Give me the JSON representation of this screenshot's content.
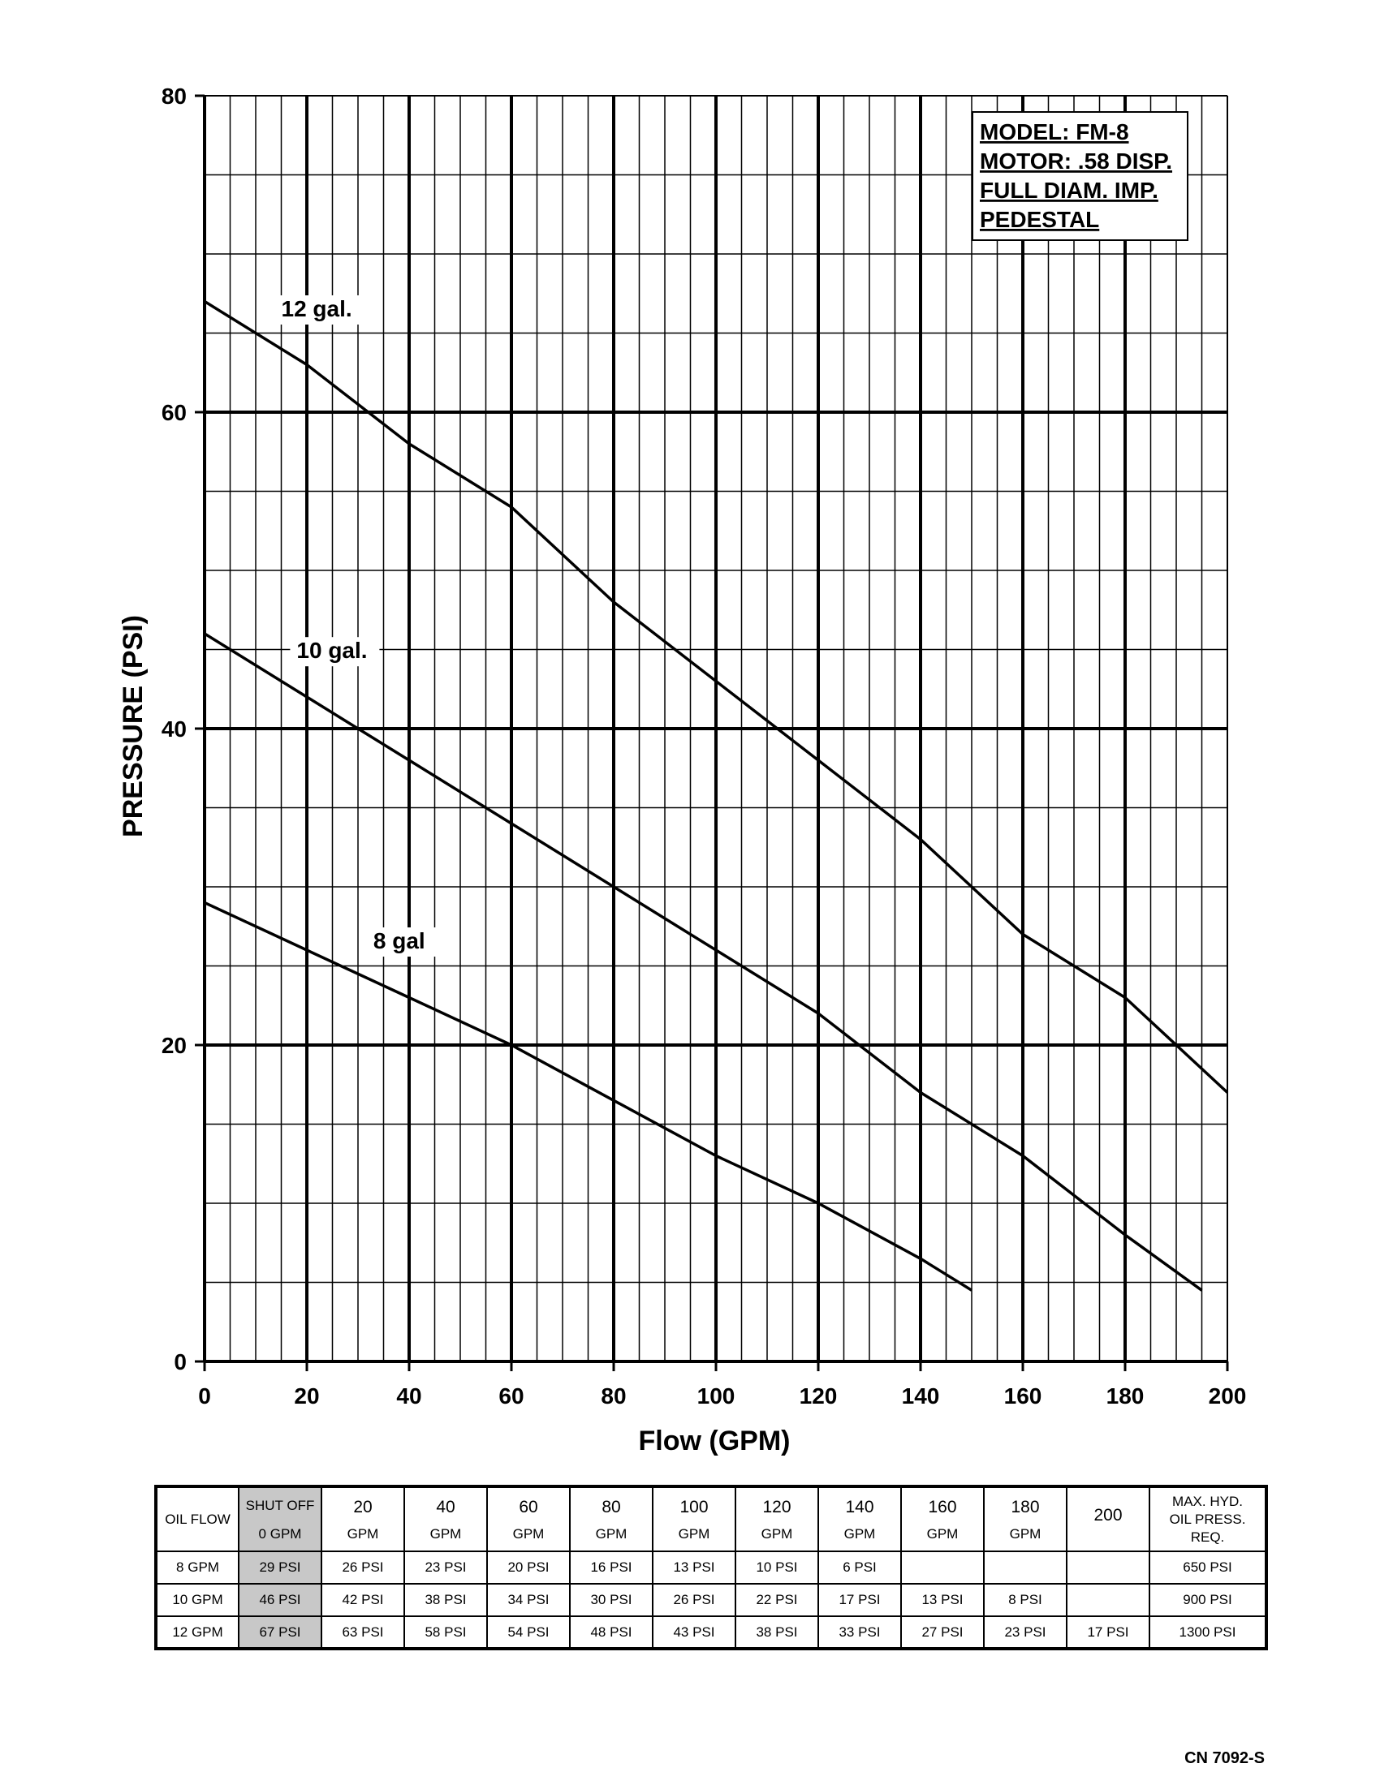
{
  "chart_data": {
    "type": "line",
    "xlabel": "Flow (GPM)",
    "ylabel": "PRESSURE (PSI)",
    "xlim": [
      0,
      200
    ],
    "ylim": [
      0,
      80
    ],
    "x_ticks": [
      "0",
      "20",
      "40",
      "60",
      "80",
      "100",
      "120",
      "140",
      "160",
      "180",
      "200"
    ],
    "y_ticks": [
      "0",
      "20",
      "40",
      "60",
      "80"
    ],
    "grid": true,
    "legend_box": [
      "MODEL: FM-8",
      "MOTOR: .58 DISP.",
      "FULL DIAM. IMP.",
      "PEDESTAL"
    ],
    "legend_placement": "top-right",
    "series": [
      {
        "name": "12 gal.",
        "x": [
          0,
          20,
          40,
          60,
          80,
          100,
          120,
          140,
          160,
          180,
          200
        ],
        "y": [
          67,
          63,
          58,
          54,
          48,
          43,
          38,
          33,
          27,
          23,
          17
        ]
      },
      {
        "name": "10 gal.",
        "x": [
          0,
          20,
          40,
          60,
          80,
          100,
          120,
          140,
          160,
          180,
          195
        ],
        "y": [
          46,
          42,
          38,
          34,
          30,
          26,
          22,
          17,
          13,
          8,
          4.5
        ]
      },
      {
        "name": "8 gal",
        "x": [
          0,
          20,
          40,
          60,
          80,
          100,
          120,
          140,
          150
        ],
        "y": [
          29,
          26,
          23,
          20,
          16.5,
          13,
          10,
          6.5,
          4.5
        ]
      }
    ]
  },
  "table": {
    "corner": "OIL FLOW",
    "header": [
      {
        "top": "SHUT OFF",
        "bottom": "0 GPM"
      },
      {
        "top": "20",
        "bottom": "GPM"
      },
      {
        "top": "40",
        "bottom": "GPM"
      },
      {
        "top": "60",
        "bottom": "GPM"
      },
      {
        "top": "80",
        "bottom": "GPM"
      },
      {
        "top": "100",
        "bottom": "GPM"
      },
      {
        "top": "120",
        "bottom": "GPM"
      },
      {
        "top": "140",
        "bottom": "GPM"
      },
      {
        "top": "160",
        "bottom": "GPM"
      },
      {
        "top": "180",
        "bottom": "GPM"
      },
      {
        "top": "200",
        "bottom": ""
      }
    ],
    "last_header": "MAX. HYD. OIL PRESS. REQ.",
    "rows": [
      {
        "label": "8 GPM",
        "cells": [
          "29 PSI",
          "26 PSI",
          "23 PSI",
          "20 PSI",
          "16 PSI",
          "13 PSI",
          "10 PSI",
          "6 PSI",
          "",
          "",
          ""
        ],
        "max": "650 PSI"
      },
      {
        "label": "10 GPM",
        "cells": [
          "46 PSI",
          "42 PSI",
          "38 PSI",
          "34 PSI",
          "30 PSI",
          "26 PSI",
          "22 PSI",
          "17 PSI",
          "13 PSI",
          "8 PSI",
          ""
        ],
        "max": "900 PSI"
      },
      {
        "label": "12 GPM",
        "cells": [
          "67 PSI",
          "63 PSI",
          "58 PSI",
          "54 PSI",
          "48 PSI",
          "43 PSI",
          "38 PSI",
          "33 PSI",
          "27 PSI",
          "23 PSI",
          "17 PSI"
        ],
        "max": "1300 PSI"
      }
    ]
  },
  "footer": {
    "code": "CN 7092-S"
  }
}
